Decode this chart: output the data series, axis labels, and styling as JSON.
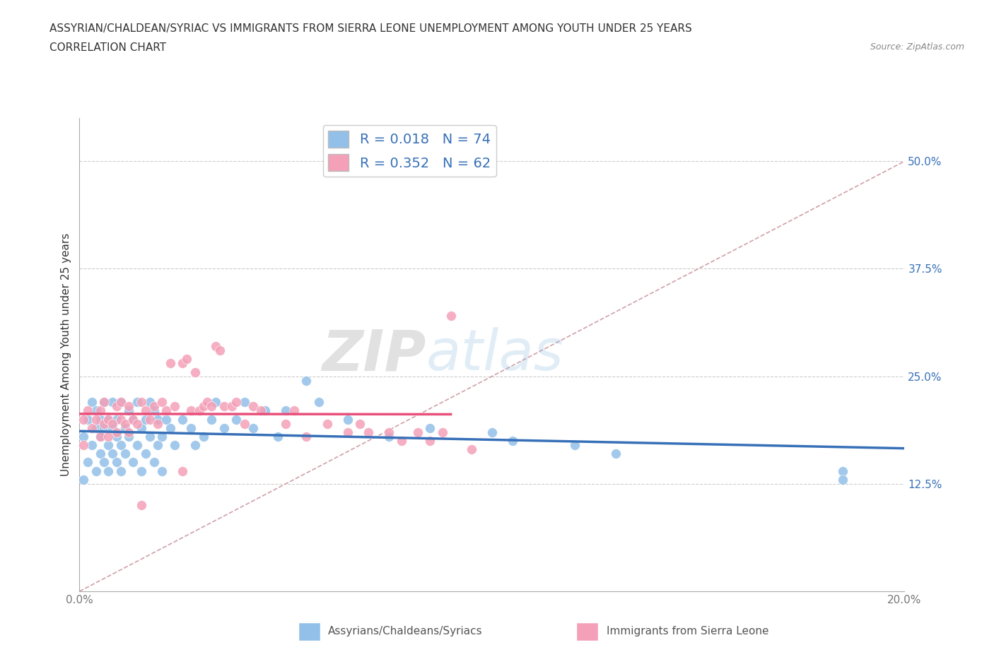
{
  "title_line1": "ASSYRIAN/CHALDEAN/SYRIAC VS IMMIGRANTS FROM SIERRA LEONE UNEMPLOYMENT AMONG YOUTH UNDER 25 YEARS",
  "title_line2": "CORRELATION CHART",
  "source": "Source: ZipAtlas.com",
  "ylabel": "Unemployment Among Youth under 25 years",
  "xmin": 0.0,
  "xmax": 0.2,
  "ymin": 0.0,
  "ymax": 0.55,
  "yticks": [
    0.0,
    0.125,
    0.25,
    0.375,
    0.5
  ],
  "ytick_labels": [
    "",
    "12.5%",
    "25.0%",
    "37.5%",
    "50.0%"
  ],
  "xticks": [
    0.0,
    0.05,
    0.1,
    0.15,
    0.2
  ],
  "xtick_labels": [
    "0.0%",
    "",
    "",
    "",
    "20.0%"
  ],
  "R_blue": 0.018,
  "N_blue": 74,
  "R_pink": 0.352,
  "N_pink": 62,
  "color_blue": "#92C0E8",
  "color_pink": "#F4A0B8",
  "line_blue": "#3870B8",
  "line_pink": "#E8507A",
  "line_diag_color": "#D0A0A8",
  "legend_label_blue": "Assyrians/Chaldeans/Syriacs",
  "legend_label_pink": "Immigrants from Sierra Leone",
  "watermark_zip": "ZIP",
  "watermark_atlas": "atlas",
  "blue_scatter_x": [
    0.001,
    0.001,
    0.002,
    0.002,
    0.003,
    0.003,
    0.004,
    0.004,
    0.004,
    0.005,
    0.005,
    0.005,
    0.006,
    0.006,
    0.006,
    0.007,
    0.007,
    0.007,
    0.008,
    0.008,
    0.008,
    0.009,
    0.009,
    0.009,
    0.01,
    0.01,
    0.01,
    0.011,
    0.011,
    0.012,
    0.012,
    0.013,
    0.013,
    0.014,
    0.014,
    0.015,
    0.015,
    0.016,
    0.016,
    0.017,
    0.017,
    0.018,
    0.018,
    0.019,
    0.019,
    0.02,
    0.02,
    0.021,
    0.022,
    0.023,
    0.025,
    0.027,
    0.028,
    0.03,
    0.032,
    0.033,
    0.035,
    0.038,
    0.04,
    0.042,
    0.045,
    0.048,
    0.05,
    0.055,
    0.058,
    0.065,
    0.075,
    0.085,
    0.1,
    0.105,
    0.12,
    0.13,
    0.185,
    0.185
  ],
  "blue_scatter_y": [
    0.18,
    0.13,
    0.2,
    0.15,
    0.22,
    0.17,
    0.19,
    0.14,
    0.21,
    0.2,
    0.16,
    0.18,
    0.15,
    0.19,
    0.22,
    0.17,
    0.2,
    0.14,
    0.16,
    0.19,
    0.22,
    0.18,
    0.15,
    0.2,
    0.17,
    0.22,
    0.14,
    0.19,
    0.16,
    0.18,
    0.21,
    0.15,
    0.2,
    0.17,
    0.22,
    0.19,
    0.14,
    0.2,
    0.16,
    0.18,
    0.22,
    0.15,
    0.21,
    0.17,
    0.2,
    0.18,
    0.14,
    0.2,
    0.19,
    0.17,
    0.2,
    0.19,
    0.17,
    0.18,
    0.2,
    0.22,
    0.19,
    0.2,
    0.22,
    0.19,
    0.21,
    0.18,
    0.21,
    0.245,
    0.22,
    0.2,
    0.18,
    0.19,
    0.185,
    0.175,
    0.17,
    0.16,
    0.14,
    0.13
  ],
  "pink_scatter_x": [
    0.001,
    0.001,
    0.002,
    0.003,
    0.004,
    0.005,
    0.005,
    0.006,
    0.006,
    0.007,
    0.007,
    0.008,
    0.009,
    0.009,
    0.01,
    0.01,
    0.011,
    0.012,
    0.012,
    0.013,
    0.014,
    0.015,
    0.016,
    0.017,
    0.018,
    0.019,
    0.02,
    0.021,
    0.022,
    0.023,
    0.025,
    0.026,
    0.027,
    0.028,
    0.029,
    0.03,
    0.031,
    0.032,
    0.033,
    0.034,
    0.035,
    0.037,
    0.038,
    0.04,
    0.042,
    0.044,
    0.05,
    0.052,
    0.055,
    0.06,
    0.065,
    0.068,
    0.07,
    0.075,
    0.078,
    0.082,
    0.085,
    0.088,
    0.09,
    0.095,
    0.015,
    0.025
  ],
  "pink_scatter_y": [
    0.2,
    0.17,
    0.21,
    0.19,
    0.2,
    0.18,
    0.21,
    0.195,
    0.22,
    0.18,
    0.2,
    0.195,
    0.185,
    0.215,
    0.2,
    0.22,
    0.195,
    0.185,
    0.215,
    0.2,
    0.195,
    0.22,
    0.21,
    0.2,
    0.215,
    0.195,
    0.22,
    0.21,
    0.265,
    0.215,
    0.265,
    0.27,
    0.21,
    0.255,
    0.21,
    0.215,
    0.22,
    0.215,
    0.285,
    0.28,
    0.215,
    0.215,
    0.22,
    0.195,
    0.215,
    0.21,
    0.195,
    0.21,
    0.18,
    0.195,
    0.185,
    0.195,
    0.185,
    0.185,
    0.175,
    0.185,
    0.175,
    0.185,
    0.32,
    0.165,
    0.1,
    0.14
  ]
}
